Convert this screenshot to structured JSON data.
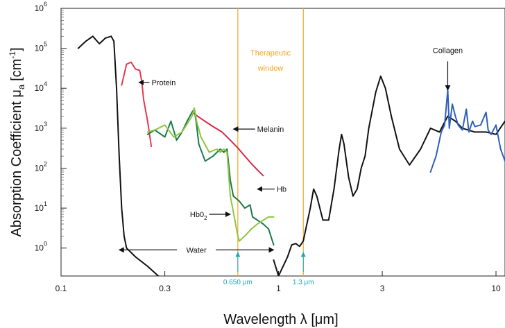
{
  "chart_data": {
    "type": "line",
    "xlabel": "Wavelength λ [μm]",
    "ylabel": "Absorption Coefficient μ",
    "ylabel_sub": "a",
    "ylabel_unit": "[cm",
    "ylabel_unit_sup": "-1",
    "ylabel_unit_close": "]",
    "x_scale": "log",
    "y_scale": "log",
    "xlim": [
      0.1,
      11
    ],
    "ylim": [
      0.2,
      1000000
    ],
    "x_ticks": [
      {
        "value": 0.1,
        "label": "0.1"
      },
      {
        "value": 0.3,
        "label": "0.3"
      },
      {
        "value": 1,
        "label": "1"
      },
      {
        "value": 3,
        "label": "3"
      },
      {
        "value": 10,
        "label": "10"
      }
    ],
    "y_ticks": [
      {
        "value": 1,
        "base": "10",
        "exp": "0"
      },
      {
        "value": 10,
        "base": "10",
        "exp": "1"
      },
      {
        "value": 100,
        "base": "10",
        "exp": "2"
      },
      {
        "value": 1000,
        "base": "10",
        "exp": "3"
      },
      {
        "value": 10000,
        "base": "10",
        "exp": "4"
      },
      {
        "value": 100000,
        "base": "10",
        "exp": "5"
      },
      {
        "value": 1000000,
        "base": "10",
        "exp": "6"
      }
    ],
    "therapeutic_window": {
      "label_line1": "Therapeutic",
      "label_line2": "window",
      "x_start": 0.65,
      "x_end": 1.3,
      "color": "#f5a623",
      "marker_labels": [
        {
          "x": 0.65,
          "text": "0.650 μm"
        },
        {
          "x": 1.3,
          "text": "1.3 μm"
        }
      ],
      "marker_color": "#19a9b7"
    },
    "series": [
      {
        "name": "Water",
        "color": "#111111",
        "points": [
          [
            0.12,
            100000
          ],
          [
            0.13,
            150000
          ],
          [
            0.14,
            200000
          ],
          [
            0.15,
            130000
          ],
          [
            0.16,
            180000
          ],
          [
            0.17,
            200000
          ],
          [
            0.175,
            150000
          ],
          [
            0.18,
            10000
          ],
          [
            0.185,
            200
          ],
          [
            0.19,
            10
          ],
          [
            0.195,
            2
          ],
          [
            0.2,
            1
          ],
          [
            0.22,
            0.6
          ],
          [
            0.25,
            0.35
          ],
          [
            0.28,
            0.2
          ]
        ]
      },
      {
        "name": "Water",
        "color": "#111111",
        "points": [
          [
            0.95,
            0.5
          ],
          [
            1.0,
            0.2
          ],
          [
            1.1,
            0.6
          ],
          [
            1.15,
            1.2
          ],
          [
            1.2,
            1.3
          ],
          [
            1.25,
            1.1
          ],
          [
            1.3,
            1.5
          ],
          [
            1.4,
            10
          ],
          [
            1.45,
            30
          ],
          [
            1.5,
            20
          ],
          [
            1.6,
            5
          ],
          [
            1.7,
            5
          ],
          [
            1.8,
            30
          ],
          [
            1.9,
            300
          ],
          [
            1.95,
            700
          ],
          [
            2.0,
            400
          ],
          [
            2.1,
            60
          ],
          [
            2.2,
            20
          ],
          [
            2.3,
            30
          ],
          [
            2.4,
            100
          ],
          [
            2.5,
            200
          ],
          [
            2.6,
            1000
          ],
          [
            2.8,
            8000
          ],
          [
            2.95,
            20000
          ],
          [
            3.1,
            10000
          ],
          [
            3.3,
            2000
          ],
          [
            3.6,
            300
          ],
          [
            4.0,
            120
          ],
          [
            4.5,
            300
          ],
          [
            5.0,
            1000
          ],
          [
            5.5,
            800
          ],
          [
            6.0,
            2000
          ],
          [
            6.5,
            1500
          ],
          [
            7.0,
            1000
          ],
          [
            8.0,
            800
          ],
          [
            9.0,
            800
          ],
          [
            10.0,
            700
          ],
          [
            11.0,
            1500
          ]
        ]
      },
      {
        "name": "Protein",
        "color": "#e8384f",
        "points": [
          [
            0.19,
            12000
          ],
          [
            0.2,
            40000
          ],
          [
            0.21,
            45000
          ],
          [
            0.22,
            30000
          ],
          [
            0.23,
            28000
          ],
          [
            0.235,
            15000
          ],
          [
            0.24,
            5000
          ],
          [
            0.25,
            1500
          ],
          [
            0.26,
            350
          ]
        ]
      },
      {
        "name": "Melanin",
        "color": "#d6294a",
        "points": [
          [
            0.4,
            2500
          ],
          [
            0.45,
            1600
          ],
          [
            0.5,
            1100
          ],
          [
            0.55,
            800
          ],
          [
            0.6,
            500
          ],
          [
            0.65,
            320
          ],
          [
            0.7,
            200
          ],
          [
            0.75,
            130
          ],
          [
            0.8,
            90
          ],
          [
            0.85,
            65
          ]
        ]
      },
      {
        "name": "Hb",
        "color": "#1a7a4a",
        "points": [
          [
            0.25,
            700
          ],
          [
            0.27,
            900
          ],
          [
            0.3,
            600
          ],
          [
            0.32,
            1500
          ],
          [
            0.34,
            500
          ],
          [
            0.36,
            800
          ],
          [
            0.38,
            1500
          ],
          [
            0.4,
            2500
          ],
          [
            0.41,
            3000
          ],
          [
            0.42,
            1200
          ],
          [
            0.43,
            400
          ],
          [
            0.46,
            150
          ],
          [
            0.5,
            200
          ],
          [
            0.54,
            300
          ],
          [
            0.56,
            250
          ],
          [
            0.58,
            300
          ],
          [
            0.6,
            50
          ],
          [
            0.62,
            20
          ],
          [
            0.66,
            15
          ],
          [
            0.7,
            10
          ],
          [
            0.74,
            12
          ],
          [
            0.76,
            6
          ],
          [
            0.8,
            5
          ],
          [
            0.85,
            4
          ],
          [
            0.9,
            3
          ],
          [
            0.95,
            1.2
          ]
        ]
      },
      {
        "name": "Hb0₂",
        "color": "#8cc63f",
        "points": [
          [
            0.25,
            800
          ],
          [
            0.27,
            900
          ],
          [
            0.3,
            1200
          ],
          [
            0.33,
            600
          ],
          [
            0.36,
            800
          ],
          [
            0.4,
            2000
          ],
          [
            0.41,
            3200
          ],
          [
            0.42,
            1500
          ],
          [
            0.44,
            600
          ],
          [
            0.48,
            250
          ],
          [
            0.52,
            300
          ],
          [
            0.54,
            250
          ],
          [
            0.56,
            300
          ],
          [
            0.58,
            250
          ],
          [
            0.6,
            20
          ],
          [
            0.62,
            8
          ],
          [
            0.65,
            2
          ],
          [
            0.66,
            1.5
          ],
          [
            0.7,
            2
          ],
          [
            0.75,
            3
          ],
          [
            0.8,
            4
          ],
          [
            0.85,
            5
          ],
          [
            0.9,
            6
          ],
          [
            0.95,
            6
          ]
        ]
      },
      {
        "name": "Collagen",
        "color": "#2e5fb8",
        "points": [
          [
            5.0,
            80
          ],
          [
            5.3,
            200
          ],
          [
            5.6,
            800
          ],
          [
            5.8,
            1200
          ],
          [
            6.0,
            9000
          ],
          [
            6.1,
            1000
          ],
          [
            6.3,
            4000
          ],
          [
            6.5,
            2000
          ],
          [
            6.7,
            1200
          ],
          [
            7.0,
            900
          ],
          [
            7.3,
            3000
          ],
          [
            7.5,
            800
          ],
          [
            7.8,
            1500
          ],
          [
            8.0,
            1100
          ],
          [
            8.5,
            1200
          ],
          [
            9.0,
            2500
          ],
          [
            9.2,
            900
          ],
          [
            9.5,
            700
          ],
          [
            10.0,
            1200
          ],
          [
            10.5,
            300
          ],
          [
            11.0,
            150
          ]
        ]
      }
    ],
    "annotations": [
      {
        "text": "Protein",
        "text_pos": [
          0.255,
          14000
        ],
        "arrow_to": [
          0.228,
          14000
        ]
      },
      {
        "text": "Melanin",
        "text_pos": [
          0.78,
          950
        ],
        "arrow_to": [
          0.62,
          950
        ]
      },
      {
        "text": "Hb",
        "text_pos": [
          0.96,
          30
        ],
        "arrow_to": [
          0.8,
          30
        ]
      },
      {
        "text": "Hb0₂",
        "text_pos": [
          0.48,
          7
        ],
        "arrow_to": [
          0.6,
          7
        ]
      },
      {
        "text": "Collagen",
        "text_pos": [
          6.0,
          60000
        ],
        "arrow_to": [
          6.0,
          9000
        ]
      },
      {
        "text": "Water",
        "double_arrow": [
          0.185,
          0.95
        ],
        "y": 0.9
      }
    ]
  }
}
